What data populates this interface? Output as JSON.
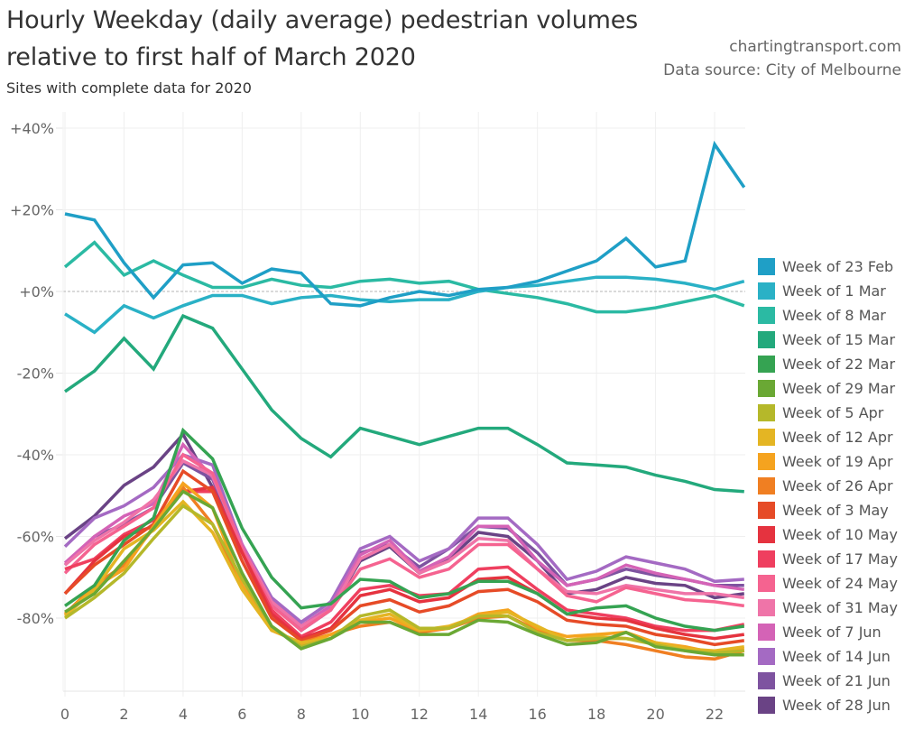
{
  "header": {
    "title_line1": "Hourly Weekday (daily average) pedestrian volumes",
    "title_line2": "relative to first half of March 2020",
    "subtitle": "Sites with complete data for 2020",
    "source_line1": "chartingtransport.com",
    "source_line2": "Data source: City of Melbourne"
  },
  "chart_data": {
    "type": "line",
    "title": "Hourly Weekday (daily average) pedestrian volumes relative to first half of March 2020",
    "subtitle": "Sites with complete data for 2020",
    "xlabel": "",
    "ylabel": "",
    "x": [
      0,
      1,
      2,
      3,
      4,
      5,
      6,
      7,
      8,
      9,
      10,
      11,
      12,
      13,
      14,
      15,
      16,
      17,
      18,
      19,
      20,
      21,
      22,
      23
    ],
    "x_ticks": [
      0,
      2,
      4,
      6,
      8,
      10,
      12,
      14,
      16,
      18,
      20,
      22
    ],
    "x_tick_labels": [
      "0",
      "2",
      "4",
      "6",
      "8",
      "10",
      "12",
      "14",
      "16",
      "18",
      "20",
      "22"
    ],
    "xlim": [
      0,
      23
    ],
    "ylim": [
      -93,
      43
    ],
    "y_ticks": [
      40,
      20,
      0,
      -20,
      -40,
      -60,
      -80
    ],
    "y_tick_labels": [
      "+40%",
      "+20%",
      "+0%",
      "-20%",
      "-40%",
      "-60%",
      "-80%"
    ],
    "grid": true,
    "reference_line": 0,
    "legend_position": "right",
    "series": [
      {
        "name": "Week of 23 Feb",
        "color": "#1f9fc6",
        "values": [
          19,
          17.5,
          7,
          -1.5,
          6.5,
          7,
          2,
          5.5,
          4.5,
          -3,
          -3.5,
          -1.5,
          0,
          -1,
          0.5,
          1,
          2.5,
          5,
          7.5,
          13,
          6,
          7.5,
          36,
          25.5
        ]
      },
      {
        "name": "Week of 1 Mar",
        "color": "#2ab1c6",
        "values": [
          -5.5,
          -10,
          -3.5,
          -6.5,
          -3.5,
          -1,
          -1,
          -3,
          -1.5,
          -1,
          -2,
          -2.5,
          -2,
          -2,
          0,
          1,
          1.5,
          2.5,
          3.5,
          3.5,
          3,
          2,
          0.5,
          2.5
        ]
      },
      {
        "name": "Week of 8 Mar",
        "color": "#2bbaa3",
        "values": [
          6,
          12,
          4,
          7.5,
          4,
          1,
          1,
          3,
          1.5,
          1,
          2.5,
          3,
          2,
          2.5,
          0.5,
          -0.5,
          -1.5,
          -3,
          -5,
          -5,
          -4,
          -2.5,
          -1,
          -3.5
        ]
      },
      {
        "name": "Week of 15 Mar",
        "color": "#23a97c",
        "values": [
          -24.5,
          -19.5,
          -11.5,
          -19,
          -6,
          -9,
          -19,
          -29,
          -36,
          -40.5,
          -33.5,
          -35.5,
          -37.5,
          -35.5,
          -33.5,
          -33.5,
          -37.5,
          -42,
          -42.5,
          -43,
          -45,
          -46.5,
          -48.5,
          -49
        ]
      },
      {
        "name": "Week of 22 Mar",
        "color": "#35a352",
        "values": [
          -77,
          -72,
          -61,
          -55.5,
          -34,
          -41,
          -58,
          -70,
          -77.5,
          -76.5,
          -70.5,
          -71,
          -75,
          -74,
          -71,
          -71,
          -74,
          -79,
          -77.5,
          -77,
          -80,
          -82,
          -83,
          -82
        ]
      },
      {
        "name": "Week of 29 Mar",
        "color": "#6aa834",
        "values": [
          -78.5,
          -74,
          -66,
          -58,
          -49,
          -53,
          -69,
          -82,
          -87.5,
          -85,
          -81,
          -81,
          -84,
          -84,
          -80.5,
          -81,
          -84,
          -86.5,
          -86,
          -83.5,
          -87,
          -88,
          -89,
          -89
        ]
      },
      {
        "name": "Week of 5 Apr",
        "color": "#b5b82a",
        "values": [
          -80,
          -75,
          -69,
          -60.5,
          -52.5,
          -57,
          -70.5,
          -82,
          -87,
          -85,
          -79.5,
          -78,
          -82.5,
          -82.5,
          -79.5,
          -79.5,
          -83.5,
          -85.5,
          -85,
          -85,
          -86.5,
          -88,
          -88.5,
          -88
        ]
      },
      {
        "name": "Week of 12 Apr",
        "color": "#e4b523",
        "values": [
          -79.5,
          -73,
          -63,
          -58.5,
          -51.5,
          -59,
          -73,
          -83,
          -86,
          -85,
          -80.5,
          -79,
          -83,
          -82,
          -79.5,
          -78.5,
          -82,
          -85.5,
          -84.5,
          -85,
          -86,
          -87.5,
          -88,
          -87
        ]
      },
      {
        "name": "Week of 19 Apr",
        "color": "#f5a31f",
        "values": [
          -79,
          -72.5,
          -68,
          -57.5,
          -47,
          -53,
          -72,
          -82.5,
          -86.5,
          -84,
          -81,
          -80,
          -83,
          -82.5,
          -79,
          -78,
          -82.5,
          -84.5,
          -84,
          -83.5,
          -86,
          -87,
          -88.5,
          -87.5
        ]
      },
      {
        "name": "Week of 26 Apr",
        "color": "#f07f22",
        "values": [
          -79,
          -72,
          -67,
          -58,
          -48,
          -57,
          -72,
          -83,
          -86,
          -84,
          -82,
          -81,
          -83.5,
          -82.5,
          -80,
          -79.5,
          -83,
          -85.5,
          -85.5,
          -86.5,
          -88,
          -89.5,
          -90,
          -88
        ]
      },
      {
        "name": "Week of 3 May",
        "color": "#e64b27",
        "values": [
          -74,
          -67,
          -62,
          -57,
          -44,
          -49,
          -66,
          -80,
          -85.5,
          -83,
          -77,
          -75.5,
          -78.5,
          -77,
          -73.5,
          -73,
          -76,
          -80.5,
          -81.5,
          -82,
          -84,
          -85,
          -86.5,
          -85.5
        ]
      },
      {
        "name": "Week of 10 May",
        "color": "#e5333f",
        "values": [
          -74,
          -66,
          -60,
          -57.5,
          -49,
          -48,
          -64,
          -79,
          -85,
          -82.5,
          -74.5,
          -73,
          -76,
          -75,
          -70.5,
          -70,
          -74,
          -79,
          -80,
          -80.5,
          -82.5,
          -84,
          -85,
          -84
        ]
      },
      {
        "name": "Week of 17 May",
        "color": "#ef3f5f",
        "values": [
          -68,
          -65.5,
          -59.5,
          -56,
          -49,
          -49,
          -64,
          -78,
          -84.5,
          -81,
          -73,
          -72,
          -74.5,
          -74,
          -68,
          -67.5,
          -73,
          -78,
          -79,
          -80,
          -82,
          -83,
          -83,
          -81.5
        ]
      },
      {
        "name": "Week of 24 May",
        "color": "#f56390",
        "values": [
          -69,
          -62,
          -57.5,
          -53,
          -40,
          -44.5,
          -63,
          -77,
          -83,
          -78,
          -68,
          -65.5,
          -70,
          -68,
          -62,
          -62,
          -68,
          -74.5,
          -76,
          -72.5,
          -74,
          -75.5,
          -76,
          -77
        ]
      },
      {
        "name": "Week of 31 May",
        "color": "#ef74a8",
        "values": [
          -67,
          -61,
          -56.5,
          -51,
          -41.5,
          -45,
          -63,
          -76,
          -82,
          -78,
          -65.5,
          -62,
          -69,
          -66,
          -60.5,
          -61,
          -68,
          -73.5,
          -74,
          -72,
          -73,
          -74,
          -74,
          -75
        ]
      },
      {
        "name": "Week of 7 Jun",
        "color": "#d463b6",
        "values": [
          -66.5,
          -60,
          -55,
          -52,
          -37.5,
          -45.5,
          -62,
          -76,
          -82,
          -77,
          -64.5,
          -61,
          -68.5,
          -65,
          -57.5,
          -57.5,
          -66,
          -72,
          -70.5,
          -67,
          -69,
          -70.5,
          -72,
          -73
        ]
      },
      {
        "name": "Week of 14 Jun",
        "color": "#a46ac3",
        "values": [
          -62.5,
          -55.5,
          -52.5,
          -48,
          -40,
          -42.5,
          -62,
          -75,
          -81,
          -76,
          -63,
          -60,
          -66,
          -63,
          -55.5,
          -55.5,
          -62,
          -70.5,
          -68.5,
          -65,
          -66.5,
          -68,
          -71,
          -70.5
        ]
      },
      {
        "name": "Week of 21 Jun",
        "color": "#7e53a0",
        "values": [
          -67,
          -60,
          -57,
          -53,
          -42,
          -46,
          -63,
          -75.5,
          -82,
          -77,
          -64,
          -62,
          -67.5,
          -63,
          -57.5,
          -58,
          -64,
          -72,
          -70.5,
          -68,
          -69.5,
          -70.5,
          -72,
          -72
        ]
      },
      {
        "name": "Week of 28 Jun",
        "color": "#6a4385",
        "values": [
          -60.5,
          -55,
          -47.5,
          -43,
          -35,
          -48,
          -62,
          -76,
          -83,
          -78,
          -66,
          -62.5,
          -69,
          -65.5,
          -59,
          -60,
          -66,
          -74,
          -73,
          -70,
          -71.5,
          -72,
          -75,
          -74
        ]
      }
    ]
  }
}
